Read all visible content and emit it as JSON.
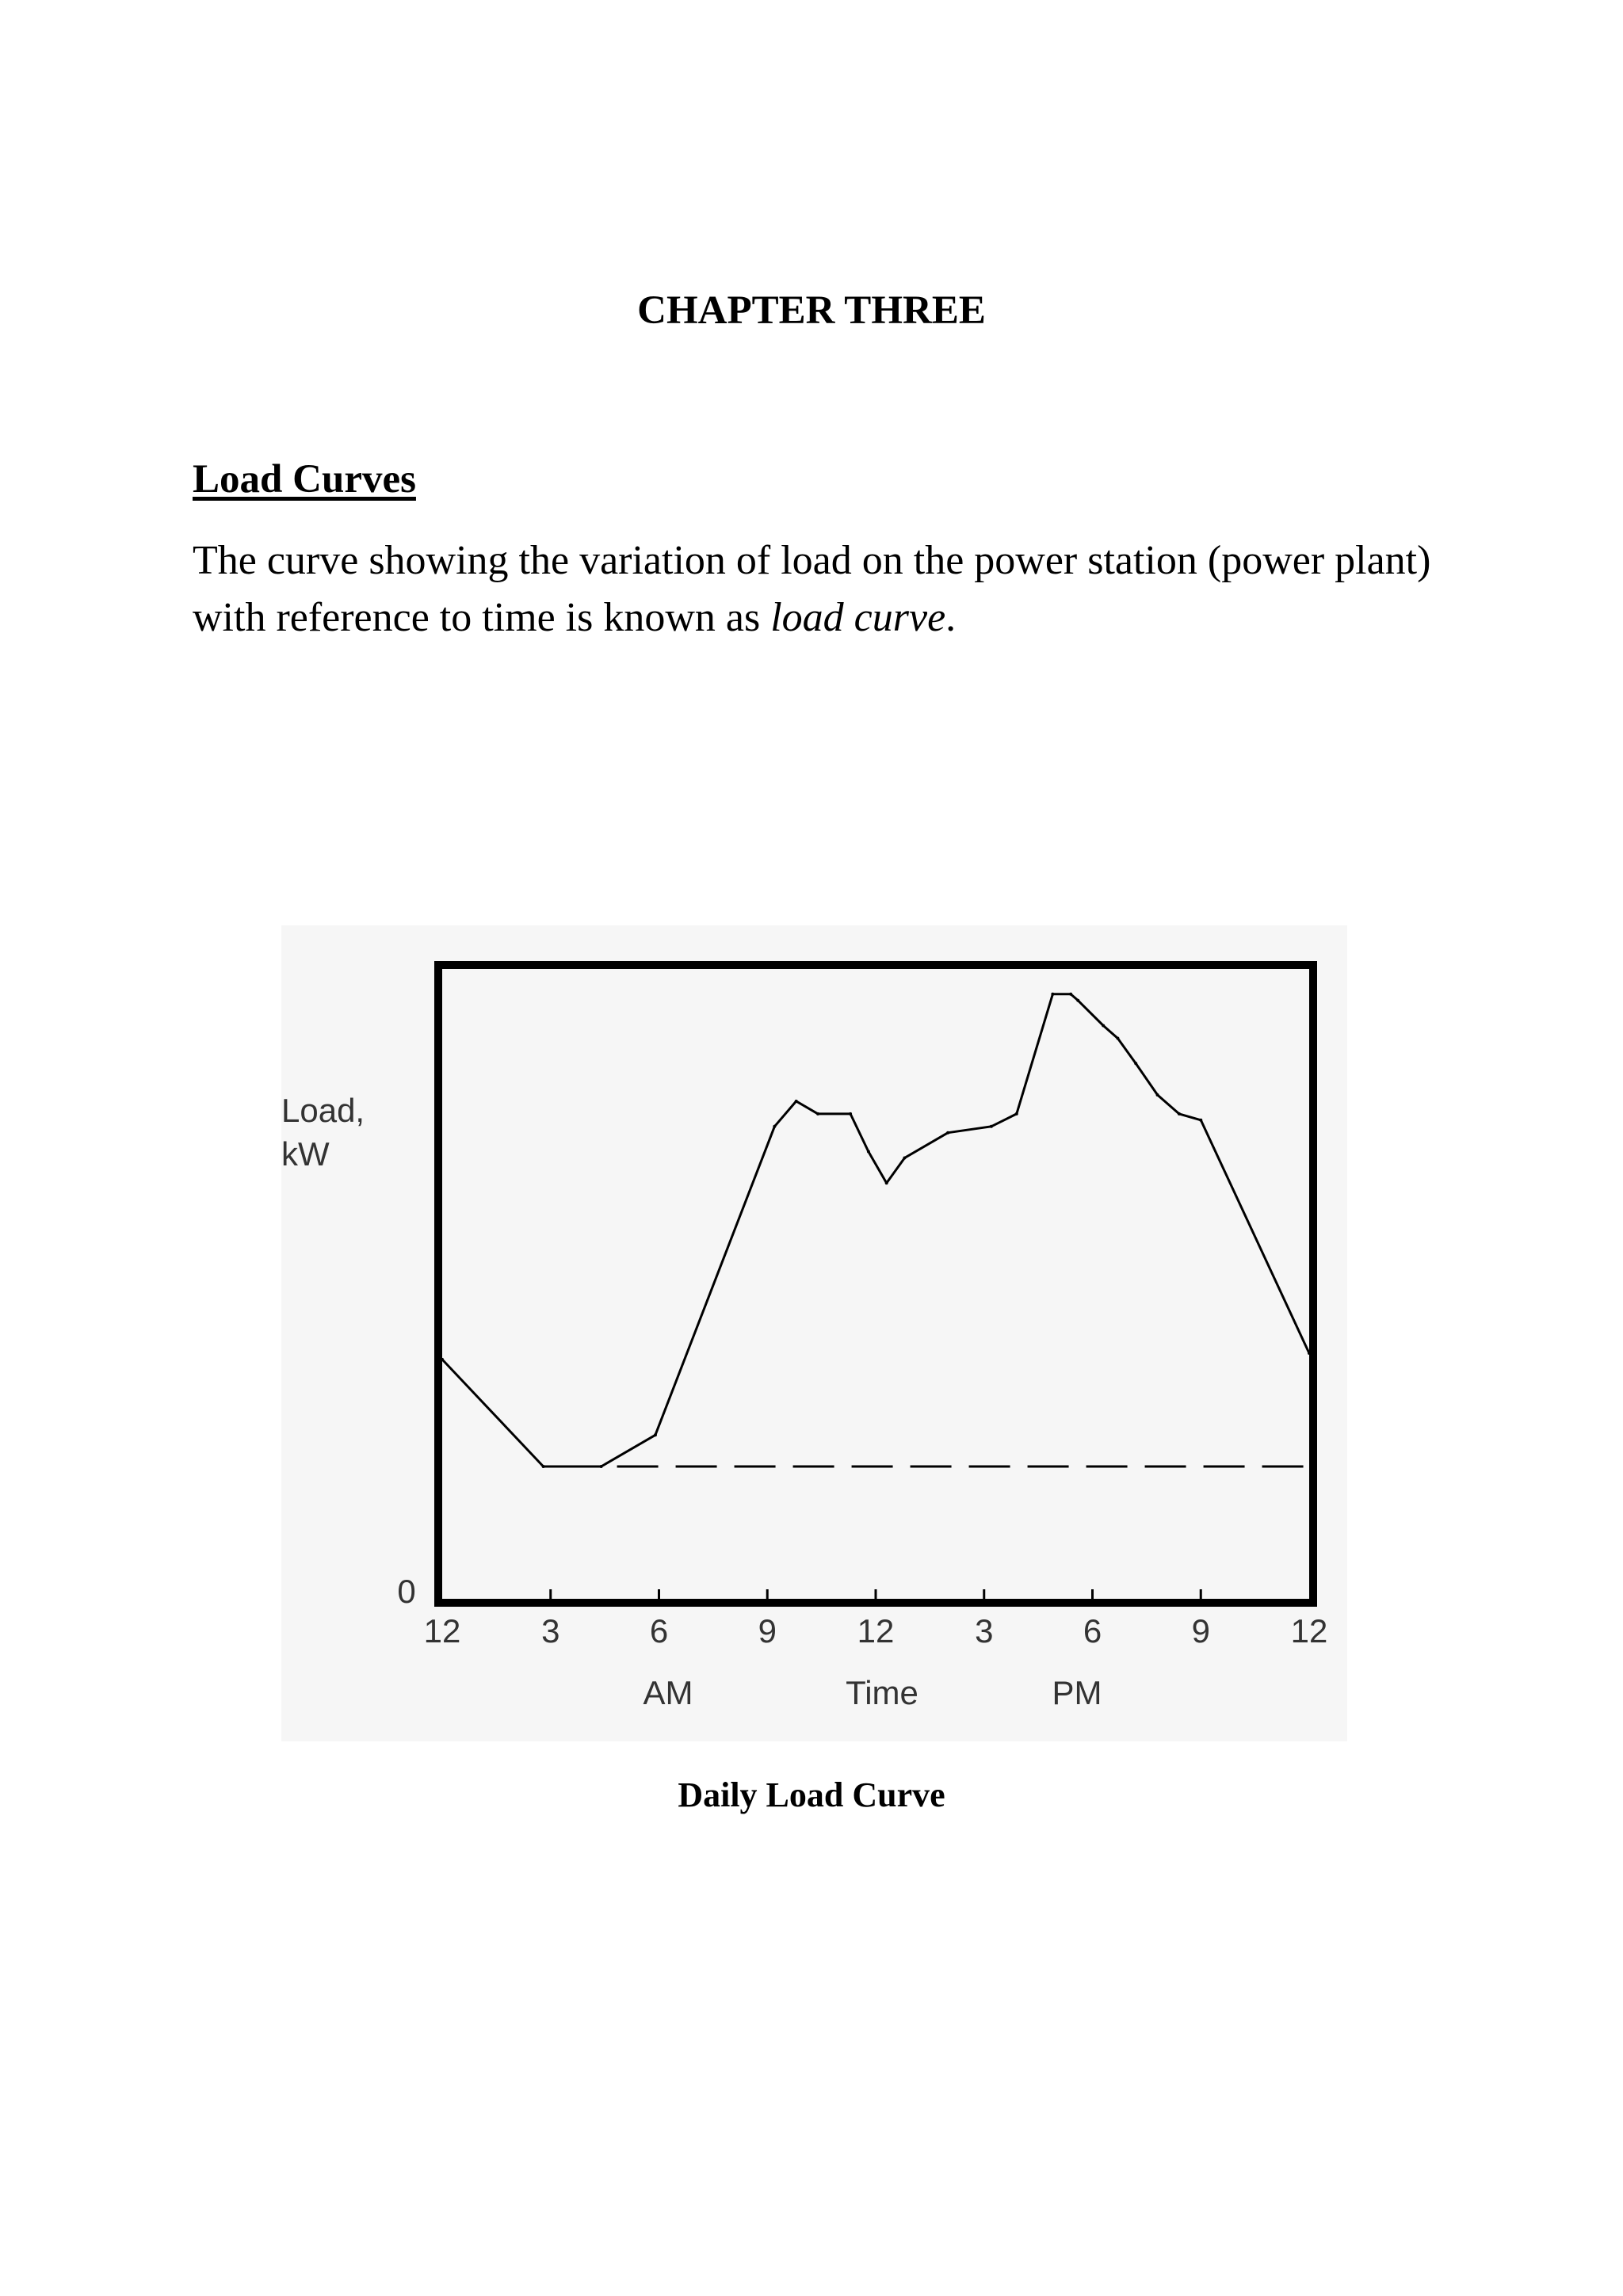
{
  "document": {
    "chapter_title": "CHAPTER THREE",
    "section_heading": "Load Curves",
    "paragraph_before": "The curve showing the variation of load on the power station (power plant) with reference to time is known as ",
    "paragraph_term": "load curve",
    "paragraph_after": ".",
    "figure_caption": "Daily Load Curve"
  },
  "chart_data": {
    "type": "line",
    "title": "",
    "ylabel_line1": "Load,",
    "ylabel_line2": "kW",
    "y_zero_label": "0",
    "xlabel": "Time",
    "xlabel_am": "AM",
    "xlabel_pm": "PM",
    "x_tick_labels": [
      "12",
      "3",
      "6",
      "9",
      "12",
      "3",
      "6",
      "9",
      "12"
    ],
    "x_tick_hours": [
      0,
      3,
      6,
      9,
      12,
      15,
      18,
      21,
      24
    ],
    "xlim": [
      0,
      24
    ],
    "ylim": [
      0,
      100
    ],
    "grid": false,
    "series": [
      {
        "x": [
          0,
          2.8,
          4.4,
          5.9,
          9.2,
          9.8,
          10.4,
          11.3,
          11.8,
          12.3,
          12.8,
          14.0,
          15.2,
          15.9,
          16.9,
          17.4,
          17.6,
          18.3,
          18.7,
          19.2,
          19.8,
          20.4,
          21.0,
          24.0
        ],
        "y": [
          38,
          21,
          21,
          26,
          75,
          79,
          77,
          77,
          71,
          66,
          70,
          74,
          75,
          77,
          96,
          96,
          95,
          91,
          89,
          85,
          80,
          77,
          76,
          39
        ]
      }
    ],
    "base_load": {
      "x_start": 4.4,
      "x_end": 24,
      "y": 21,
      "style": "dashed"
    },
    "colors": {
      "line": "#000000",
      "frame": "#000000",
      "background": "#f6f6f6"
    }
  }
}
